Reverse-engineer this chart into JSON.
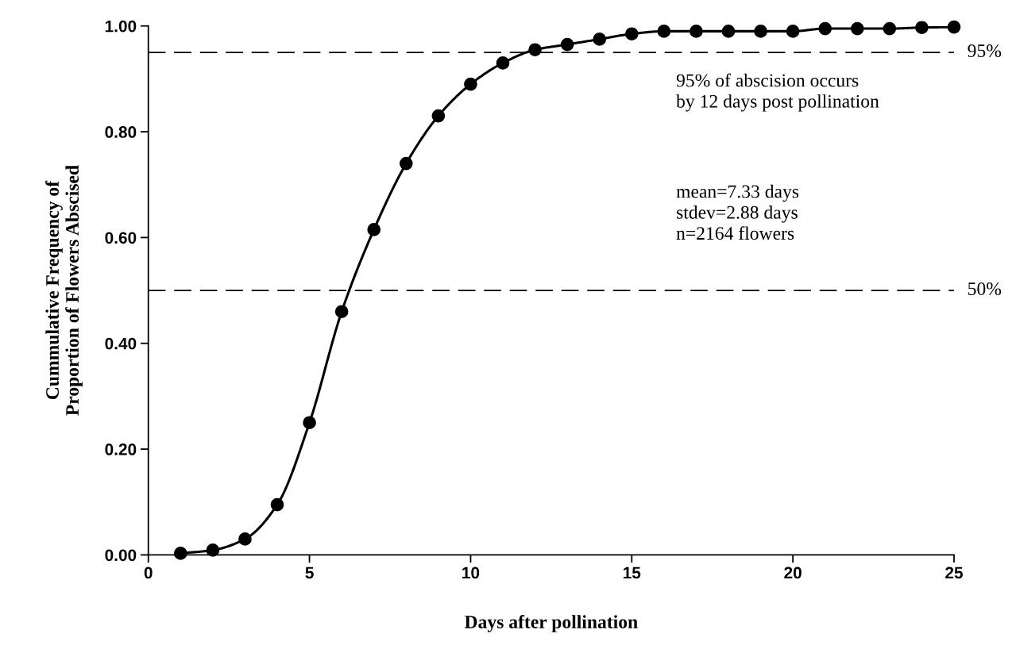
{
  "chart_data": {
    "type": "line",
    "xlabel": "Days after pollination",
    "ylabel": "Cummulative Frequency of\nProportion of Flowers Abscised",
    "x": [
      1,
      2,
      3,
      4,
      5,
      6,
      7,
      8,
      9,
      10,
      11,
      12,
      13,
      14,
      15,
      16,
      17,
      18,
      19,
      20,
      21,
      22,
      23,
      24,
      25
    ],
    "series": [
      {
        "color": "#000000",
        "values": [
          0.003,
          0.009,
          0.03,
          0.095,
          0.25,
          0.46,
          0.615,
          0.74,
          0.83,
          0.89,
          0.93,
          0.955,
          0.965,
          0.975,
          0.985,
          0.99,
          0.99,
          0.99,
          0.99,
          0.99,
          0.995,
          0.995,
          0.995,
          0.997,
          0.998
        ]
      }
    ],
    "xlim": [
      0,
      25
    ],
    "ylim": [
      0,
      1
    ],
    "xticks": [
      0,
      5,
      10,
      15,
      20,
      25
    ],
    "yticks": [
      {
        "value": 0,
        "label": "0.00"
      },
      {
        "value": 0.2,
        "label": "0.20"
      },
      {
        "value": 0.4,
        "label": "0.40"
      },
      {
        "value": 0.6,
        "label": "0.60"
      },
      {
        "value": 0.8,
        "label": "0.80"
      },
      {
        "value": 1,
        "label": "1.00"
      }
    ],
    "ref_lines": [
      {
        "axis": "y",
        "value": 0.95,
        "label": "95%",
        "color": "#000000",
        "line_style": "dashed"
      },
      {
        "axis": "y",
        "value": 0.5,
        "label": "50%",
        "color": "#000000",
        "line_style": "dashed"
      }
    ],
    "annotations": [
      "95% of abscision occurs\nby 12 days post pollination",
      "mean=7.33 days\nstdev=2.88 days\nn=2164 flowers"
    ],
    "marker": "circle",
    "line_style": "solid",
    "grid": false
  }
}
